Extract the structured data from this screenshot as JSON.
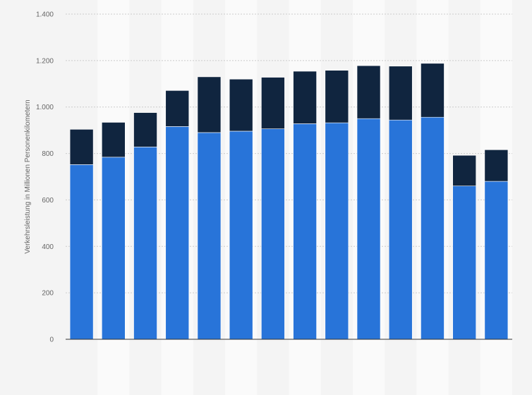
{
  "chart_data": {
    "type": "bar",
    "stacked": true,
    "categories": [
      "",
      "",
      "",
      "",
      "",
      "",
      "",
      "",
      "",
      "",
      "",
      "",
      "",
      ""
    ],
    "series": [
      {
        "values": [
          752,
          784,
          828,
          916,
          890,
          896,
          906,
          928,
          932,
          950,
          944,
          956,
          660,
          680
        ],
        "color": "#2874d9"
      },
      {
        "values": [
          152,
          150,
          148,
          155,
          240,
          224,
          222,
          226,
          226,
          228,
          232,
          232,
          132,
          136
        ],
        "color": "#10253f"
      }
    ],
    "ylabel": "Verkehrsleistung in Millionen Personenkilometern",
    "ylim": [
      0,
      1400
    ],
    "yticks": [
      0,
      200,
      400,
      600,
      800,
      1000,
      1200,
      1400
    ],
    "ytick_labels": [
      "0",
      "200",
      "400",
      "600",
      "800",
      "1.000",
      "1.200",
      "1.400"
    ],
    "grid": true,
    "legend": "none"
  },
  "colors": {
    "background": "#f4f4f4",
    "stripe": "#fafafa",
    "gridline": "#cccccc",
    "axis": "#333333",
    "tick_text": "#666666"
  }
}
